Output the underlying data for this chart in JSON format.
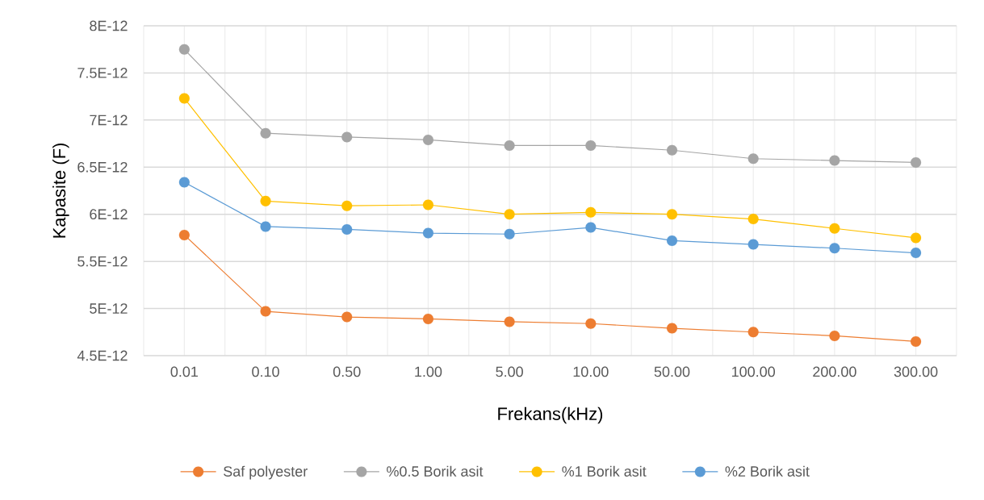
{
  "chart_data": {
    "type": "line",
    "xlabel": "Frekans(kHz)",
    "ylabel": "Kapasite (F)",
    "categories": [
      "0.01",
      "0.10",
      "0.50",
      "1.00",
      "5.00",
      "10.00",
      "50.00",
      "100.00",
      "200.00",
      "300.00"
    ],
    "series": [
      {
        "name": "Saf polyester",
        "color": "#ed7d31",
        "values": [
          5.78e-12,
          4.97e-12,
          4.91e-12,
          4.89e-12,
          4.86e-12,
          4.84e-12,
          4.79e-12,
          4.75e-12,
          4.71e-12,
          4.65e-12
        ]
      },
      {
        "name": "%0.5 Borik asit",
        "color": "#a5a5a5",
        "values": [
          7.75e-12,
          6.86e-12,
          6.82e-12,
          6.79e-12,
          6.73e-12,
          6.73e-12,
          6.68e-12,
          6.59e-12,
          6.57e-12,
          6.55e-12
        ]
      },
      {
        "name": "%1 Borik asit",
        "color": "#ffc000",
        "values": [
          7.23e-12,
          6.14e-12,
          6.09e-12,
          6.1e-12,
          6e-12,
          6.02e-12,
          6e-12,
          5.95e-12,
          5.85e-12,
          5.75e-12
        ]
      },
      {
        "name": "%2 Borik asit",
        "color": "#5b9bd5",
        "values": [
          6.34e-12,
          5.87e-12,
          5.84e-12,
          5.8e-12,
          5.79e-12,
          5.86e-12,
          5.72e-12,
          5.68e-12,
          5.64e-12,
          5.59e-12
        ]
      }
    ],
    "ylim": [
      4.5e-12,
      8e-12
    ],
    "yticks": [
      {
        "value": 4.5e-12,
        "label": "4.5E-12"
      },
      {
        "value": 5e-12,
        "label": "5E-12"
      },
      {
        "value": 5.5e-12,
        "label": "5.5E-12"
      },
      {
        "value": 6e-12,
        "label": "6E-12"
      },
      {
        "value": 6.5e-12,
        "label": "6.5E-12"
      },
      {
        "value": 7e-12,
        "label": "7E-12"
      },
      {
        "value": 7.5e-12,
        "label": "7.5E-12"
      },
      {
        "value": 8e-12,
        "label": "8E-12"
      }
    ],
    "grid": true,
    "legend": "bottom",
    "marker": "circle",
    "line_style": "solid"
  }
}
